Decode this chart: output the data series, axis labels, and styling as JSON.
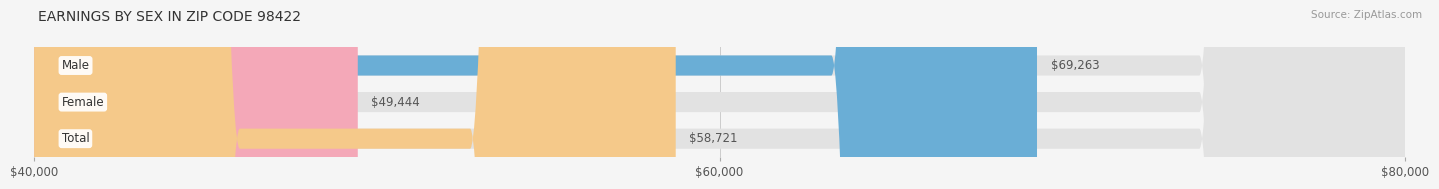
{
  "title": "EARNINGS BY SEX IN ZIP CODE 98422",
  "source": "Source: ZipAtlas.com",
  "categories": [
    "Male",
    "Female",
    "Total"
  ],
  "values": [
    69263,
    49444,
    58721
  ],
  "bar_colors": [
    "#6aaed6",
    "#f4a8b8",
    "#f5c98a"
  ],
  "value_labels": [
    "$69,263",
    "$49,444",
    "$58,721"
  ],
  "xmin": 40000,
  "xmax": 80000,
  "xticks": [
    40000,
    60000,
    80000
  ],
  "xtick_labels": [
    "$40,000",
    "$60,000",
    "$80,000"
  ],
  "bar_height": 0.55,
  "background_color": "#f5f5f5",
  "bar_bg_color": "#e2e2e2",
  "title_fontsize": 10,
  "label_fontsize": 8.5,
  "value_fontsize": 8.5,
  "source_fontsize": 7.5
}
